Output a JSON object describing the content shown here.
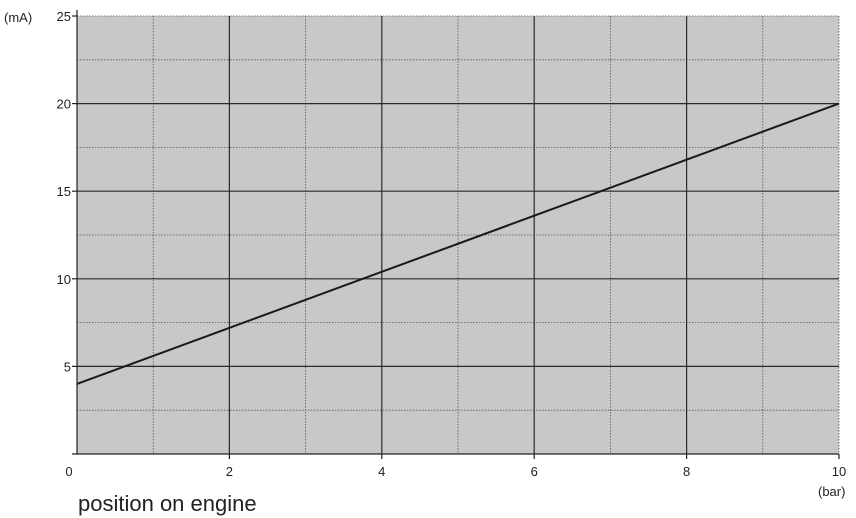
{
  "chart_data": {
    "type": "line",
    "title": "",
    "ylabel": "(mA)",
    "xlabel": "(bar)",
    "xlim": [
      0,
      10
    ],
    "ylim": [
      0,
      25
    ],
    "x_ticks": [
      0,
      2,
      4,
      6,
      8,
      10
    ],
    "x_minor_ticks": [
      1,
      3,
      5,
      7,
      9
    ],
    "y_ticks": [
      5,
      10,
      15,
      20,
      25
    ],
    "y_minor_ticks": [
      2.5,
      7.5,
      12.5,
      17.5,
      22.5
    ],
    "grid": true,
    "plot_background": "#c8c8c8",
    "line_color": "#1a1a1a",
    "series": [
      {
        "x": [
          0,
          10
        ],
        "y": [
          4,
          20
        ]
      }
    ]
  },
  "caption": "position on engine"
}
